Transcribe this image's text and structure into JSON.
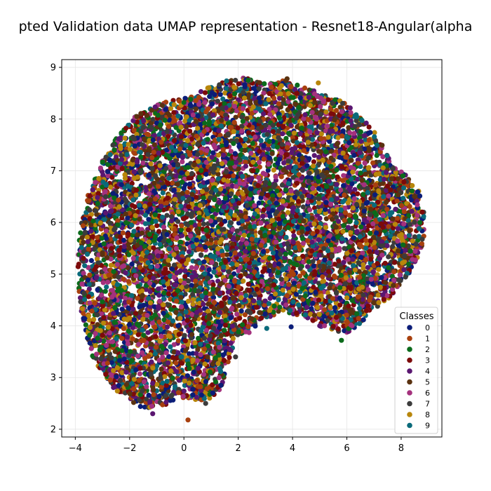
{
  "chart_data": {
    "type": "scatter",
    "title": "pted Validation data UMAP representation - Resnet18-Angular(alpha",
    "xlabel": "",
    "ylabel": "",
    "xlim": [
      -4.5,
      9.5
    ],
    "ylim": [
      1.85,
      9.15
    ],
    "xticks": [
      -4,
      -2,
      0,
      2,
      4,
      6,
      8
    ],
    "yticks": [
      2,
      3,
      4,
      5,
      6,
      7,
      8,
      9
    ],
    "grid": true,
    "legend": {
      "title": "Classes",
      "placement": "lower-right"
    },
    "series": [
      {
        "name": "0",
        "color": "#0b1d78"
      },
      {
        "name": "1",
        "color": "#a8400e"
      },
      {
        "name": "2",
        "color": "#0b6a1b"
      },
      {
        "name": "3",
        "color": "#7c0a0a"
      },
      {
        "name": "4",
        "color": "#5a1670"
      },
      {
        "name": "5",
        "color": "#5a3210"
      },
      {
        "name": "6",
        "color": "#a4317d"
      },
      {
        "name": "7",
        "color": "#3c3c3c"
      },
      {
        "name": "8",
        "color": "#b8860b"
      },
      {
        "name": "9",
        "color": "#0a6a7a"
      }
    ],
    "cloud_outline": [
      [
        -3.9,
        5.4
      ],
      [
        -3.8,
        6.0
      ],
      [
        -3.5,
        6.6
      ],
      [
        -3.0,
        7.2
      ],
      [
        -2.4,
        7.7
      ],
      [
        -1.7,
        8.1
      ],
      [
        -1.0,
        8.3
      ],
      [
        0.0,
        8.4
      ],
      [
        0.8,
        8.6
      ],
      [
        1.6,
        8.75
      ],
      [
        2.2,
        8.8
      ],
      [
        3.0,
        8.7
      ],
      [
        3.8,
        8.75
      ],
      [
        4.5,
        8.6
      ],
      [
        5.3,
        8.45
      ],
      [
        6.0,
        8.3
      ],
      [
        6.6,
        8.0
      ],
      [
        7.1,
        7.7
      ],
      [
        7.6,
        7.2
      ],
      [
        8.2,
        6.9
      ],
      [
        8.7,
        6.6
      ],
      [
        8.9,
        6.0
      ],
      [
        8.8,
        5.5
      ],
      [
        8.4,
        5.1
      ],
      [
        8.0,
        4.8
      ],
      [
        7.5,
        4.5
      ],
      [
        7.0,
        4.3
      ],
      [
        6.5,
        4.0
      ],
      [
        6.0,
        3.85
      ],
      [
        5.3,
        3.9
      ],
      [
        4.7,
        4.1
      ],
      [
        4.2,
        4.2
      ],
      [
        3.6,
        4.3
      ],
      [
        3.0,
        4.1
      ],
      [
        2.4,
        3.9
      ],
      [
        1.9,
        3.8
      ],
      [
        1.6,
        3.2
      ],
      [
        1.3,
        2.7
      ],
      [
        0.8,
        2.55
      ],
      [
        0.0,
        2.6
      ],
      [
        -0.8,
        2.45
      ],
      [
        -1.5,
        2.4
      ],
      [
        -2.2,
        2.6
      ],
      [
        -2.8,
        2.9
      ],
      [
        -3.3,
        3.3
      ],
      [
        -3.6,
        3.8
      ],
      [
        -3.8,
        4.3
      ],
      [
        -3.9,
        4.8
      ]
    ],
    "outliers": [
      [
        0.15,
        2.18
      ],
      [
        -1.15,
        2.3
      ],
      [
        0.8,
        2.5
      ],
      [
        3.95,
        3.98
      ],
      [
        2.85,
        4.15
      ],
      [
        2.4,
        3.87
      ],
      [
        3.05,
        3.95
      ],
      [
        5.8,
        3.72
      ],
      [
        3.8,
        8.78
      ],
      [
        4.95,
        8.7
      ],
      [
        4.45,
        8.6
      ],
      [
        5.0,
        4.0
      ],
      [
        1.9,
        3.4
      ]
    ],
    "point_count": 9000
  }
}
